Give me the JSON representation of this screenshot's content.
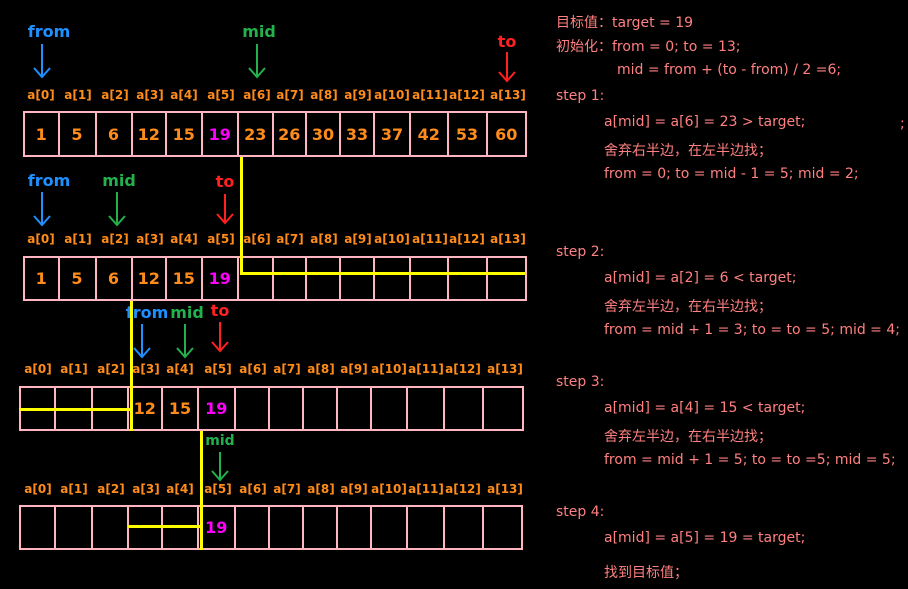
{
  "indices": [
    "a[0]",
    "a[1]",
    "a[2]",
    "a[3]",
    "a[4]",
    "a[5]",
    "a[6]",
    "a[7]",
    "a[8]",
    "a[9]",
    "a[10]",
    "a[11]",
    "a[12]",
    "a[13]"
  ],
  "rows": [
    {
      "values": [
        "1",
        "5",
        "6",
        "12",
        "15",
        "19",
        "23",
        "26",
        "30",
        "33",
        "37",
        "42",
        "53",
        "60"
      ],
      "target_index": 5
    },
    {
      "values": [
        "1",
        "5",
        "6",
        "12",
        "15",
        "19",
        "",
        "",
        "",
        "",
        "",
        "",
        "",
        ""
      ],
      "target_index": 5
    },
    {
      "values": [
        "",
        "",
        "",
        "12",
        "15",
        "19",
        "",
        "",
        "",
        "",
        "",
        "",
        "",
        ""
      ],
      "target_index": 5
    },
    {
      "values": [
        "",
        "",
        "",
        "",
        "",
        "19",
        "",
        "",
        "",
        "",
        "",
        "",
        "",
        ""
      ],
      "target_index": 5
    }
  ],
  "pointer_labels": {
    "from": "from",
    "mid": "mid",
    "to": "to"
  },
  "colors": {
    "from": "#1e90ff",
    "mid": "#22b14c",
    "to": "#ff2020",
    "index": "#ff8c1a",
    "box": "#ffb6c1",
    "highlight": "#ff00ff",
    "line": "#ffff00",
    "text": "#ff8080"
  },
  "explanation": [
    "目标值：target = 19",
    "初始化：from = 0; to = 13;",
    "mid = from + (to - from) / 2 =6;",
    "step 1:",
    "a[mid] = a[6] = 23 > target;",
    "舍弃右半边，在左半边找；",
    "from = 0; to = mid - 1 = 5; mid = 2;",
    "step 2:",
    "a[mid] = a[2] = 6 < target;",
    "舍弃左半边，在右半边找；",
    "from = mid + 1 = 3; to = to = 5; mid = 4;",
    "step 3:",
    "a[mid] = a[4] = 15 < target;",
    "舍弃左半边，在右半边找；",
    "from = mid + 1 = 5; to = to =5; mid = 5;",
    "step 4:",
    "a[mid] = a[5] = 19 = target;",
    "找到目标值；"
  ],
  "stray_mark": ";"
}
